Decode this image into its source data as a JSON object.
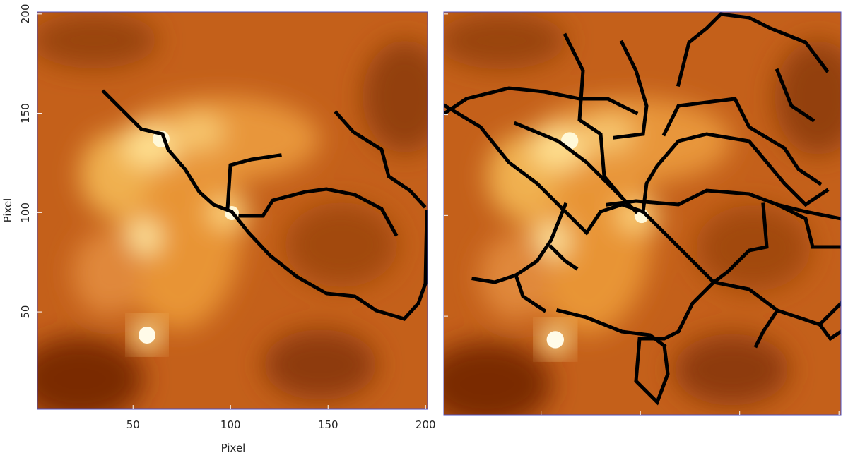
{
  "chart_data": {
    "type": "image",
    "x_label": "Pixel",
    "y_label": "Pixel",
    "xlim": [
      1,
      201
    ],
    "ylim": [
      1,
      201
    ],
    "xticks": [
      50,
      100,
      150,
      200
    ],
    "yticks": [
      50,
      100,
      150,
      200
    ]
  }
}
